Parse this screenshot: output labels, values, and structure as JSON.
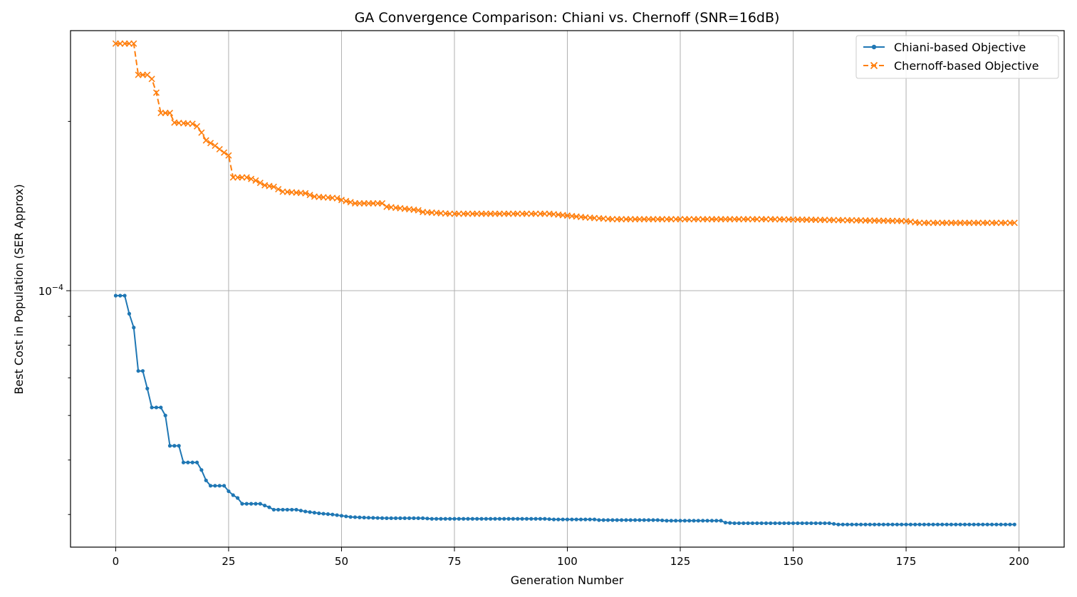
{
  "chart_data": {
    "type": "line",
    "title": "GA Convergence Comparison: Chiani vs. Chernoff (SNR=16dB)",
    "xlabel": "Generation Number",
    "ylabel": "Best Cost in Population (SER Approx)",
    "xlim": [
      -10,
      210
    ],
    "ylim": [
      3.5e-05,
      0.00029
    ],
    "yscale": "log",
    "x_ticks": [
      0,
      25,
      50,
      75,
      100,
      125,
      150,
      175,
      200
    ],
    "y_major_tick": {
      "value": 0.0001,
      "base": "10",
      "exp": "−4"
    },
    "y_minor_ticks": [
      4e-05,
      5e-05,
      6e-05,
      7e-05,
      8e-05,
      9e-05,
      0.0002
    ],
    "grid": true,
    "legend_position": "top-right",
    "series": [
      {
        "name": "Chiani-based Objective",
        "color": "#1f77b4",
        "linestyle": "solid",
        "marker": "dot",
        "keypoints": [
          [
            0,
            9.8e-05
          ],
          [
            2,
            9.8e-05
          ],
          [
            3,
            9.1e-05
          ],
          [
            4,
            8.6e-05
          ],
          [
            5,
            7.2e-05
          ],
          [
            6,
            7.2e-05
          ],
          [
            7,
            6.7e-05
          ],
          [
            8,
            6.2e-05
          ],
          [
            10,
            6.2e-05
          ],
          [
            11,
            6e-05
          ],
          [
            12,
            5.3e-05
          ],
          [
            14,
            5.3e-05
          ],
          [
            15,
            4.95e-05
          ],
          [
            18,
            4.95e-05
          ],
          [
            19,
            4.8e-05
          ],
          [
            20,
            4.6e-05
          ],
          [
            21,
            4.5e-05
          ],
          [
            24,
            4.5e-05
          ],
          [
            25,
            4.4e-05
          ],
          [
            26,
            4.33e-05
          ],
          [
            27,
            4.28e-05
          ],
          [
            28,
            4.18e-05
          ],
          [
            32,
            4.18e-05
          ],
          [
            33,
            4.15e-05
          ],
          [
            34,
            4.12e-05
          ],
          [
            35,
            4.08e-05
          ],
          [
            40,
            4.08e-05
          ],
          [
            42,
            4.05e-05
          ],
          [
            45,
            4.02e-05
          ],
          [
            48,
            4e-05
          ],
          [
            50,
            3.98e-05
          ],
          [
            52,
            3.96e-05
          ],
          [
            55,
            3.95e-05
          ],
          [
            60,
            3.94e-05
          ],
          [
            68,
            3.94e-05
          ],
          [
            70,
            3.93e-05
          ],
          [
            95,
            3.93e-05
          ],
          [
            97,
            3.92e-05
          ],
          [
            106,
            3.92e-05
          ],
          [
            107,
            3.91e-05
          ],
          [
            120,
            3.91e-05
          ],
          [
            122,
            3.9e-05
          ],
          [
            134,
            3.9e-05
          ],
          [
            135,
            3.87e-05
          ],
          [
            137,
            3.86e-05
          ],
          [
            158,
            3.86e-05
          ],
          [
            160,
            3.84e-05
          ],
          [
            199,
            3.84e-05
          ]
        ]
      },
      {
        "name": "Chernoff-based Objective",
        "color": "#ff7f0e",
        "linestyle": "dashed",
        "marker": "x",
        "keypoints": [
          [
            0,
            0.000275
          ],
          [
            4,
            0.000275
          ],
          [
            5,
            0.000242
          ],
          [
            7,
            0.000242
          ],
          [
            8,
            0.000238
          ],
          [
            9,
            0.000225
          ],
          [
            10,
            0.000207
          ],
          [
            12,
            0.000207
          ],
          [
            13,
            0.000199
          ],
          [
            17,
            0.000198
          ],
          [
            18,
            0.000196
          ],
          [
            19,
            0.000191
          ],
          [
            20,
            0.000185
          ],
          [
            22,
            0.000181
          ],
          [
            24,
            0.000176
          ],
          [
            25,
            0.000174
          ],
          [
            26,
            0.000159
          ],
          [
            29,
            0.000159
          ],
          [
            31,
            0.000157
          ],
          [
            33,
            0.000154
          ],
          [
            35,
            0.000153
          ],
          [
            37,
            0.00015
          ],
          [
            42,
            0.000149
          ],
          [
            44,
            0.000147
          ],
          [
            49,
            0.000146
          ],
          [
            50,
            0.000145
          ],
          [
            53,
            0.000143
          ],
          [
            59,
            0.000143
          ],
          [
            60,
            0.000141
          ],
          [
            67,
            0.000139
          ],
          [
            68,
            0.000138
          ],
          [
            74,
            0.000137
          ],
          [
            96,
            0.000137
          ],
          [
            100,
            0.000136
          ],
          [
            104,
            0.000135
          ],
          [
            110,
            0.000134
          ],
          [
            140,
            0.000134
          ],
          [
            145,
            0.000134
          ],
          [
            175,
            0.000133
          ],
          [
            178,
            0.000132
          ],
          [
            199,
            0.000132
          ]
        ]
      }
    ]
  }
}
